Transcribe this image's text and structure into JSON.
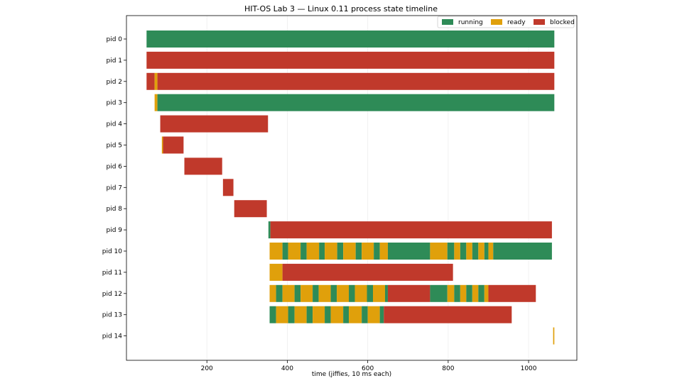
{
  "chart_data": {
    "type": "bar",
    "subtype": "horizontal-broken-bar (gantt)",
    "title": "HIT-OS Lab 3 — Linux 0.11 process state timeline",
    "xlabel": "time (jiffies, 10 ms each)",
    "ylabel": "",
    "xlim": [
      0,
      1120
    ],
    "xticks": [
      200,
      400,
      600,
      800,
      1000
    ],
    "grid": "vertical, light",
    "legend_position": "top-right",
    "legend": [
      {
        "state": "running",
        "label": "running",
        "color": "#2e8b57"
      },
      {
        "state": "ready",
        "label": "ready",
        "color": "#e0a00b"
      },
      {
        "state": "blocked",
        "label": "blocked",
        "color": "#c0392b"
      }
    ],
    "rows": [
      {
        "label": "pid 0",
        "segments": [
          [
            50,
            1064,
            "running"
          ]
        ]
      },
      {
        "label": "pid 1",
        "segments": [
          [
            50,
            1064,
            "blocked"
          ]
        ]
      },
      {
        "label": "pid 2",
        "segments": [
          [
            50,
            70,
            "blocked"
          ],
          [
            70,
            77,
            "ready"
          ],
          [
            77,
            1064,
            "blocked"
          ]
        ]
      },
      {
        "label": "pid 3",
        "segments": [
          [
            70,
            77,
            "ready"
          ],
          [
            77,
            1064,
            "running"
          ]
        ]
      },
      {
        "label": "pid 4",
        "segments": [
          [
            84,
            352,
            "blocked"
          ]
        ]
      },
      {
        "label": "pid 5",
        "segments": [
          [
            88,
            91,
            "ready"
          ],
          [
            91,
            142,
            "blocked"
          ]
        ]
      },
      {
        "label": "pid 6",
        "segments": [
          [
            144,
            238,
            "blocked"
          ]
        ]
      },
      {
        "label": "pid 7",
        "segments": [
          [
            240,
            266,
            "blocked"
          ]
        ]
      },
      {
        "label": "pid 8",
        "segments": [
          [
            268,
            349,
            "blocked"
          ]
        ]
      },
      {
        "label": "pid 9",
        "segments": [
          [
            353,
            358,
            "running"
          ],
          [
            358,
            1058,
            "blocked"
          ]
        ]
      },
      {
        "label": "pid 10",
        "segments": [
          [
            356,
            388,
            "ready"
          ],
          [
            388,
            402,
            "running"
          ],
          [
            402,
            433,
            "ready"
          ],
          [
            433,
            448,
            "running"
          ],
          [
            448,
            479,
            "ready"
          ],
          [
            479,
            493,
            "running"
          ],
          [
            493,
            524,
            "ready"
          ],
          [
            524,
            539,
            "running"
          ],
          [
            539,
            570,
            "ready"
          ],
          [
            570,
            585,
            "running"
          ],
          [
            585,
            615,
            "ready"
          ],
          [
            615,
            630,
            "running"
          ],
          [
            630,
            650,
            "ready"
          ],
          [
            650,
            755,
            "running"
          ],
          [
            755,
            798,
            "ready"
          ],
          [
            798,
            815,
            "running"
          ],
          [
            815,
            830,
            "ready"
          ],
          [
            830,
            845,
            "running"
          ],
          [
            845,
            860,
            "ready"
          ],
          [
            860,
            875,
            "running"
          ],
          [
            875,
            890,
            "ready"
          ],
          [
            890,
            900,
            "running"
          ],
          [
            900,
            912,
            "ready"
          ],
          [
            912,
            1058,
            "running"
          ]
        ]
      },
      {
        "label": "pid 11",
        "segments": [
          [
            356,
            388,
            "ready"
          ],
          [
            388,
            812,
            "blocked"
          ]
        ]
      },
      {
        "label": "pid 12",
        "segments": [
          [
            356,
            372,
            "ready"
          ],
          [
            372,
            388,
            "running"
          ],
          [
            388,
            418,
            "ready"
          ],
          [
            418,
            433,
            "running"
          ],
          [
            433,
            463,
            "ready"
          ],
          [
            463,
            478,
            "running"
          ],
          [
            478,
            508,
            "ready"
          ],
          [
            508,
            523,
            "running"
          ],
          [
            523,
            553,
            "ready"
          ],
          [
            553,
            568,
            "running"
          ],
          [
            568,
            598,
            "ready"
          ],
          [
            598,
            613,
            "running"
          ],
          [
            613,
            643,
            "ready"
          ],
          [
            643,
            650,
            "running"
          ],
          [
            650,
            755,
            "blocked"
          ],
          [
            755,
            798,
            "running"
          ],
          [
            798,
            815,
            "ready"
          ],
          [
            815,
            830,
            "running"
          ],
          [
            830,
            845,
            "ready"
          ],
          [
            845,
            860,
            "running"
          ],
          [
            860,
            875,
            "ready"
          ],
          [
            875,
            890,
            "running"
          ],
          [
            890,
            900,
            "ready"
          ],
          [
            900,
            1018,
            "blocked"
          ]
        ]
      },
      {
        "label": "pid 13",
        "segments": [
          [
            356,
            372,
            "running"
          ],
          [
            372,
            402,
            "ready"
          ],
          [
            402,
            418,
            "running"
          ],
          [
            418,
            448,
            "ready"
          ],
          [
            448,
            463,
            "running"
          ],
          [
            463,
            493,
            "ready"
          ],
          [
            493,
            508,
            "running"
          ],
          [
            508,
            539,
            "ready"
          ],
          [
            539,
            553,
            "running"
          ],
          [
            553,
            585,
            "ready"
          ],
          [
            585,
            600,
            "running"
          ],
          [
            600,
            630,
            "ready"
          ],
          [
            630,
            640,
            "running"
          ],
          [
            640,
            958,
            "blocked"
          ]
        ]
      },
      {
        "label": "pid 14",
        "segments": [
          [
            1061,
            1064,
            "ready"
          ]
        ]
      }
    ]
  }
}
